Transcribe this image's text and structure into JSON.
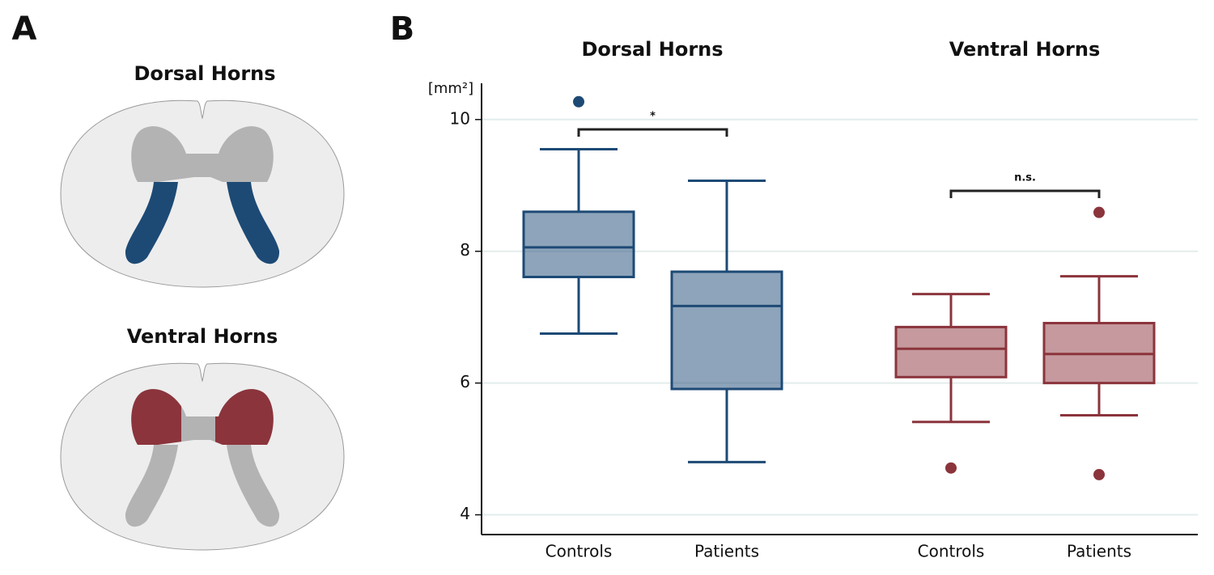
{
  "diagram": {
    "label": "A",
    "titles": [
      "Dorsal Horns",
      "Ventral Horns"
    ]
  },
  "chart_data": {
    "type": "box",
    "label": "B",
    "y_label": "[mm²]",
    "ylim": [
      3.7,
      10.55
    ],
    "yticks": [
      4,
      6,
      8,
      10
    ],
    "grid": true,
    "groups": [
      {
        "name": "Dorsal Horns",
        "color": "#1d4a75",
        "annotation": "*",
        "boxes": [
          {
            "name": "Controls",
            "whisker_low": 6.75,
            "q1": 7.61,
            "median": 8.06,
            "q3": 8.6,
            "whisker_high": 9.55,
            "outliers": [
              10.27
            ]
          },
          {
            "name": "Patients",
            "whisker_low": 4.8,
            "q1": 5.91,
            "median": 7.17,
            "q3": 7.69,
            "whisker_high": 9.07,
            "outliers": []
          }
        ]
      },
      {
        "name": "Ventral Horns",
        "color": "#8b343c",
        "annotation": "n.s.",
        "boxes": [
          {
            "name": "Controls",
            "whisker_low": 5.41,
            "q1": 6.09,
            "median": 6.52,
            "q3": 6.85,
            "whisker_high": 7.35,
            "outliers": [
              4.71
            ]
          },
          {
            "name": "Patients",
            "whisker_low": 5.51,
            "q1": 6.0,
            "median": 6.44,
            "q3": 6.91,
            "whisker_high": 7.62,
            "outliers": [
              8.59,
              4.61
            ]
          }
        ]
      }
    ]
  }
}
